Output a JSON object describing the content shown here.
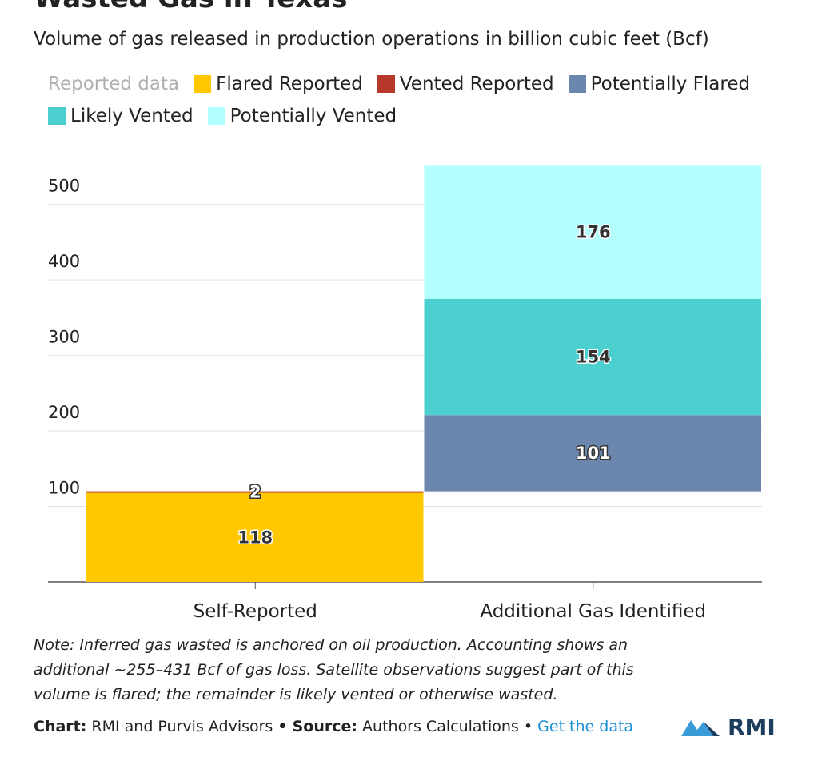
{
  "chart_data": {
    "type": "bar",
    "stacked": true,
    "waterfall": true,
    "title": "Wasted Gas in Texas",
    "subtitle": "Volume of gas released in production operations in billion cubic feet (Bcf)",
    "legend_title": "Reported data",
    "categories": [
      "Self-Reported",
      "Additional Gas Identified"
    ],
    "series": [
      {
        "name": "Flared Reported",
        "color": "#ffc800",
        "label_color": "#333333",
        "values": [
          118,
          null
        ]
      },
      {
        "name": "Vented Reported",
        "color": "#b5382a",
        "label_color": "#ffffff",
        "values": [
          2,
          null
        ]
      },
      {
        "name": "Potentially Flared",
        "color": "#6c87ae",
        "label_color": "#ffffff",
        "values": [
          null,
          101
        ]
      },
      {
        "name": "Likely Vented",
        "color": "#4bcfcf",
        "label_color": "#333333",
        "values": [
          null,
          154
        ]
      },
      {
        "name": "Potentially Vented",
        "color": "#b3ffff",
        "label_color": "#333333",
        "values": [
          null,
          176
        ]
      }
    ],
    "ylim": [
      0,
      560
    ],
    "yticks": [
      100,
      200,
      300,
      400,
      500
    ],
    "grid": true,
    "note": "Note: Inferred gas wasted is anchored on oil production. Accounting shows an additional ~255–431 Bcf of gas loss. Satellite observations suggest part of this volume is flared; the remainder is likely vented or otherwise wasted.",
    "credit_label": "Chart:",
    "credit": "RMI and Purvis Advisors",
    "separator": "•",
    "source_label": "Source:",
    "source": "Authors Calculations",
    "data_link": "Get the data",
    "logo": "RMI"
  }
}
